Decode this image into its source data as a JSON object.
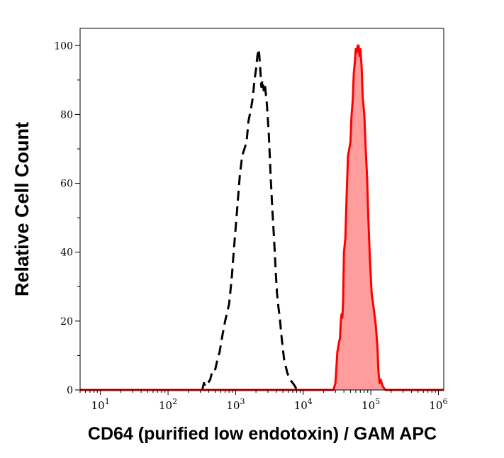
{
  "chart_data": {
    "type": "area",
    "title": "",
    "xlabel": "CD64 (purified low endotoxin) / GAM APC",
    "ylabel": "Relative Cell Count",
    "x_scale": "log",
    "xlim": [
      5,
      1200000
    ],
    "ylim": [
      0,
      105
    ],
    "x_ticks": [
      {
        "value": 10,
        "base": "10",
        "exp": "1"
      },
      {
        "value": 100,
        "base": "10",
        "exp": "2"
      },
      {
        "value": 1000,
        "base": "10",
        "exp": "3"
      },
      {
        "value": 10000,
        "base": "10",
        "exp": "4"
      },
      {
        "value": 100000,
        "base": "10",
        "exp": "5"
      },
      {
        "value": 1000000,
        "base": "10",
        "exp": "6"
      }
    ],
    "y_ticks": [
      {
        "value": 0,
        "label": "0"
      },
      {
        "value": 20,
        "label": "20"
      },
      {
        "value": 40,
        "label": "40"
      },
      {
        "value": 60,
        "label": "60"
      },
      {
        "value": 80,
        "label": "80"
      },
      {
        "value": 100,
        "label": "100"
      }
    ],
    "grid": false,
    "series": [
      {
        "style": "dashed",
        "color": "#000000",
        "fill": "none",
        "points": [
          [
            320,
            0
          ],
          [
            340,
            2
          ],
          [
            360,
            1
          ],
          [
            390,
            2
          ],
          [
            420,
            3
          ],
          [
            460,
            6
          ],
          [
            500,
            6
          ],
          [
            540,
            9
          ],
          [
            580,
            11
          ],
          [
            640,
            16
          ],
          [
            700,
            20
          ],
          [
            760,
            23
          ],
          [
            800,
            25
          ],
          [
            840,
            29
          ],
          [
            880,
            33
          ],
          [
            920,
            38
          ],
          [
            980,
            45
          ],
          [
            1050,
            52
          ],
          [
            1150,
            62
          ],
          [
            1250,
            68
          ],
          [
            1350,
            70
          ],
          [
            1450,
            72
          ],
          [
            1550,
            78
          ],
          [
            1700,
            82
          ],
          [
            1800,
            85
          ],
          [
            1900,
            90
          ],
          [
            2000,
            93
          ],
          [
            2100,
            97
          ],
          [
            2200,
            99
          ],
          [
            2300,
            94
          ],
          [
            2400,
            88
          ],
          [
            2500,
            90
          ],
          [
            2600,
            87
          ],
          [
            2700,
            89
          ],
          [
            2800,
            86
          ],
          [
            2900,
            83
          ],
          [
            3100,
            74
          ],
          [
            3300,
            62
          ],
          [
            3500,
            52
          ],
          [
            3700,
            44
          ],
          [
            3900,
            35
          ],
          [
            4100,
            28
          ],
          [
            4300,
            24
          ],
          [
            4500,
            21
          ],
          [
            4800,
            15
          ],
          [
            5200,
            9
          ],
          [
            5800,
            5
          ],
          [
            6400,
            3
          ],
          [
            7000,
            2
          ],
          [
            7600,
            1
          ],
          [
            8000,
            0
          ]
        ]
      },
      {
        "style": "solid",
        "color": "#ff0000",
        "fill": "#ff9d9d",
        "points": [
          [
            5,
            0
          ],
          [
            28000,
            0
          ],
          [
            30000,
            2
          ],
          [
            32000,
            11
          ],
          [
            34000,
            14
          ],
          [
            35000,
            15
          ],
          [
            36000,
            20
          ],
          [
            37000,
            22
          ],
          [
            38000,
            21
          ],
          [
            39000,
            26
          ],
          [
            40000,
            40
          ],
          [
            42000,
            44
          ],
          [
            44000,
            57
          ],
          [
            46000,
            68
          ],
          [
            48000,
            70
          ],
          [
            50000,
            72
          ],
          [
            52000,
            80
          ],
          [
            54000,
            84
          ],
          [
            56000,
            92
          ],
          [
            58000,
            95
          ],
          [
            60000,
            99
          ],
          [
            62000,
            98
          ],
          [
            64000,
            100
          ],
          [
            66000,
            100
          ],
          [
            68000,
            97
          ],
          [
            70000,
            99
          ],
          [
            73000,
            94
          ],
          [
            76000,
            85
          ],
          [
            80000,
            80
          ],
          [
            84000,
            70
          ],
          [
            88000,
            62
          ],
          [
            92000,
            50
          ],
          [
            97000,
            38
          ],
          [
            103000,
            28
          ],
          [
            110000,
            24
          ],
          [
            118000,
            19
          ],
          [
            125000,
            13
          ],
          [
            130000,
            5
          ],
          [
            135000,
            2
          ],
          [
            140000,
            3
          ],
          [
            150000,
            1
          ],
          [
            165000,
            0
          ],
          [
            1200000,
            0
          ]
        ]
      }
    ]
  }
}
